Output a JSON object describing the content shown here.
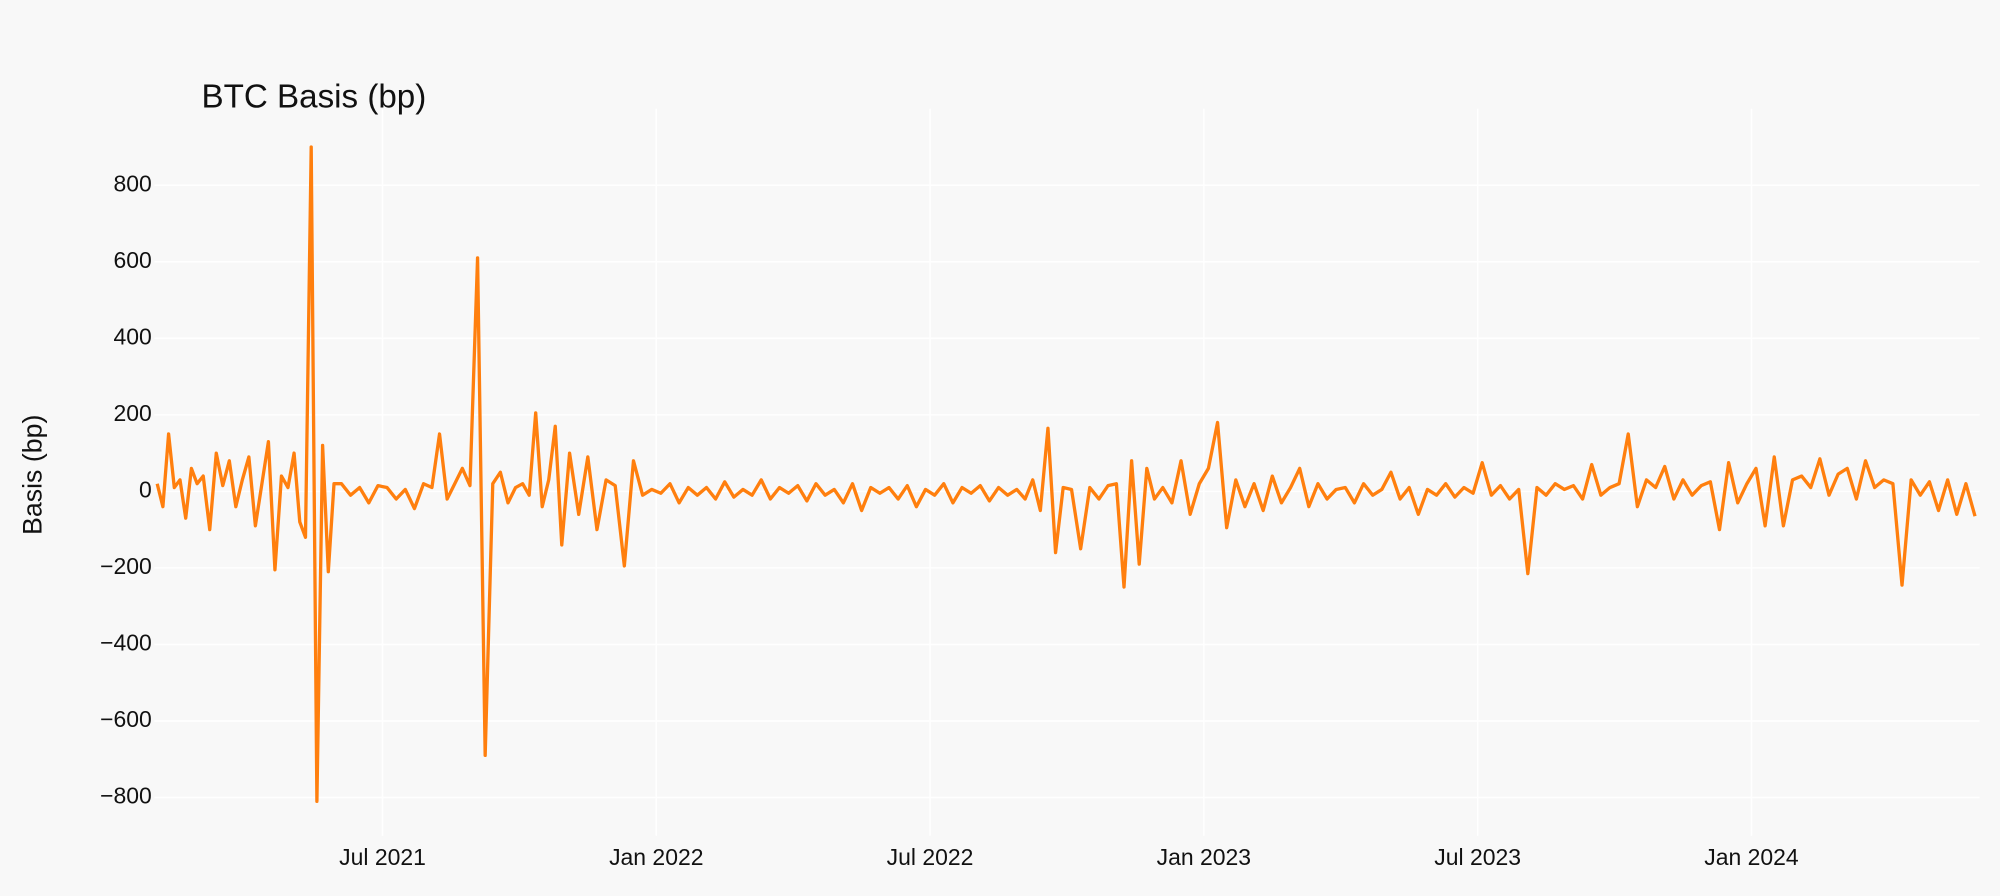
{
  "chart_data": {
    "type": "line",
    "title": "BTC Basis (bp)",
    "y_label": "Basis (bp)",
    "color": "#ff7f0e",
    "grid": true,
    "xlim": [
      "2021-02",
      "2024-06"
    ],
    "xticks": [
      {
        "value": "2021-07",
        "label": "Jul 2021"
      },
      {
        "value": "2022-01",
        "label": "Jan 2022"
      },
      {
        "value": "2022-07",
        "label": "Jul 2022"
      },
      {
        "value": "2023-01",
        "label": "Jan 2023"
      },
      {
        "value": "2023-07",
        "label": "Jul 2023"
      },
      {
        "value": "2024-01",
        "label": "Jan 2024"
      }
    ],
    "ylim": [
      -900,
      1000
    ],
    "yticks": [
      {
        "value": -800,
        "label": "−800"
      },
      {
        "value": -600,
        "label": "−600"
      },
      {
        "value": -400,
        "label": "−400"
      },
      {
        "value": -200,
        "label": "−200"
      },
      0,
      200,
      400,
      600,
      800
    ],
    "x": [
      "2021-02",
      "2021-02",
      "2021-02",
      "2021-02",
      "2021-02",
      "2021-02",
      "2021-02",
      "2021-02",
      "2021-03",
      "2021-03",
      "2021-03",
      "2021-03",
      "2021-03",
      "2021-03",
      "2021-03",
      "2021-04",
      "2021-04",
      "2021-04",
      "2021-04",
      "2021-04",
      "2021-04",
      "2021-04",
      "2021-05",
      "2021-05",
      "2021-05",
      "2021-05",
      "2021-05",
      "2021-05",
      "2021-05",
      "2021-05",
      "2021-06",
      "2021-06",
      "2021-06",
      "2021-06",
      "2021-06",
      "2021-07",
      "2021-07",
      "2021-07",
      "2021-07",
      "2021-07",
      "2021-08",
      "2021-08",
      "2021-08",
      "2021-08",
      "2021-08",
      "2021-08",
      "2021-09",
      "2021-09",
      "2021-09",
      "2021-09",
      "2021-09",
      "2021-09",
      "2021-10",
      "2021-10",
      "2021-10",
      "2021-10",
      "2021-10",
      "2021-10",
      "2021-10",
      "2021-11",
      "2021-11",
      "2021-11",
      "2021-11",
      "2021-11",
      "2021-12",
      "2021-12",
      "2021-12",
      "2021-12",
      "2021-12",
      "2022-01",
      "2022-01",
      "2022-01",
      "2022-01",
      "2022-01",
      "2022-02",
      "2022-02",
      "2022-02",
      "2022-02",
      "2022-02",
      "2022-03",
      "2022-03",
      "2022-03",
      "2022-03",
      "2022-03",
      "2022-04",
      "2022-04",
      "2022-04",
      "2022-04",
      "2022-04",
      "2022-05",
      "2022-05",
      "2022-05",
      "2022-05",
      "2022-05",
      "2022-06",
      "2022-06",
      "2022-06",
      "2022-06",
      "2022-06",
      "2022-07",
      "2022-07",
      "2022-07",
      "2022-07",
      "2022-07",
      "2022-08",
      "2022-08",
      "2022-08",
      "2022-08",
      "2022-08",
      "2022-09",
      "2022-09",
      "2022-09",
      "2022-09",
      "2022-09",
      "2022-09",
      "2022-10",
      "2022-10",
      "2022-10",
      "2022-10",
      "2022-10",
      "2022-11",
      "2022-11",
      "2022-11",
      "2022-11",
      "2022-11",
      "2022-11",
      "2022-12",
      "2022-12",
      "2022-12",
      "2022-12",
      "2022-12",
      "2023-01",
      "2023-01",
      "2023-01",
      "2023-01",
      "2023-01",
      "2023-02",
      "2023-02",
      "2023-02",
      "2023-02",
      "2023-02",
      "2023-03",
      "2023-03",
      "2023-03",
      "2023-03",
      "2023-03",
      "2023-04",
      "2023-04",
      "2023-04",
      "2023-04",
      "2023-04",
      "2023-05",
      "2023-05",
      "2023-05",
      "2023-05",
      "2023-05",
      "2023-06",
      "2023-06",
      "2023-06",
      "2023-06",
      "2023-06",
      "2023-07",
      "2023-07",
      "2023-07",
      "2023-07",
      "2023-07",
      "2023-08",
      "2023-08",
      "2023-08",
      "2023-08",
      "2023-08",
      "2023-09",
      "2023-09",
      "2023-09",
      "2023-09",
      "2023-09",
      "2023-10",
      "2023-10",
      "2023-10",
      "2023-10",
      "2023-10",
      "2023-11",
      "2023-11",
      "2023-11",
      "2023-11",
      "2023-11",
      "2023-12",
      "2023-12",
      "2023-12",
      "2023-12",
      "2023-12",
      "2024-01",
      "2024-01",
      "2024-01",
      "2024-01",
      "2024-01",
      "2024-02",
      "2024-02",
      "2024-02",
      "2024-02",
      "2024-02",
      "2024-03",
      "2024-03",
      "2024-03",
      "2024-03",
      "2024-03",
      "2024-04",
      "2024-04",
      "2024-04",
      "2024-04",
      "2024-04",
      "2024-05",
      "2024-05",
      "2024-05",
      "2024-05",
      "2024-05"
    ],
    "values": [
      20,
      -40,
      150,
      10,
      30,
      -70,
      60,
      20,
      40,
      -100,
      100,
      15,
      80,
      -40,
      30,
      90,
      -90,
      20,
      130,
      -205,
      40,
      10,
      100,
      -80,
      -120,
      900,
      -810,
      120,
      -210,
      20,
      20,
      -10,
      10,
      -30,
      15,
      10,
      -20,
      5,
      -45,
      20,
      10,
      150,
      -20,
      20,
      60,
      15,
      610,
      -690,
      20,
      50,
      -30,
      10,
      20,
      -10,
      205,
      -40,
      30,
      170,
      -140,
      100,
      -60,
      90,
      -100,
      30,
      15,
      -195,
      80,
      -10,
      5,
      -5,
      20,
      -30,
      10,
      -10,
      10,
      -20,
      25,
      -15,
      5,
      -10,
      30,
      -20,
      10,
      -5,
      15,
      -25,
      20,
      -10,
      5,
      -30,
      20,
      -50,
      10,
      -5,
      10,
      -20,
      15,
      -40,
      5,
      -10,
      20,
      -30,
      10,
      -5,
      15,
      -25,
      10,
      -10,
      5,
      -20,
      30,
      -50,
      165,
      -160,
      10,
      5,
      -150,
      10,
      -20,
      15,
      20,
      -250,
      80,
      -190,
      60,
      -20,
      10,
      -30,
      80,
      -60,
      20,
      60,
      180,
      -95,
      30,
      -40,
      20,
      -50,
      40,
      -30,
      10,
      60,
      -40,
      20,
      -20,
      5,
      10,
      -30,
      20,
      -10,
      5,
      50,
      -20,
      10,
      -60,
      5,
      -10,
      20,
      -15,
      10,
      -5,
      75,
      -10,
      15,
      -20,
      5,
      -215,
      10,
      -10,
      20,
      5,
      15,
      -20,
      70,
      -10,
      10,
      20,
      150,
      -40,
      30,
      10,
      65,
      -20,
      30,
      -10,
      15,
      25,
      -100,
      75,
      -30,
      20,
      60,
      -90,
      90,
      -90,
      30,
      40,
      10,
      85,
      -10,
      45,
      60,
      -20,
      80,
      10,
      30,
      20,
      -245,
      30,
      -10,
      25,
      -50,
      30,
      -60,
      20,
      -65
    ]
  }
}
